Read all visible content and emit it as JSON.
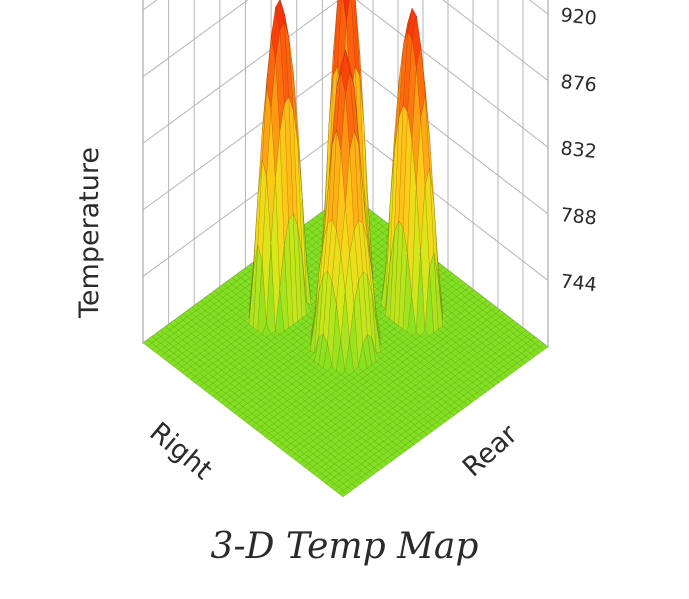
{
  "figure": {
    "caption": "3-D Temp Map"
  },
  "chart_data": {
    "type": "surface",
    "title": "",
    "zlabel": "Temperature",
    "x_axis_label": "Right",
    "y_axis_label": "Rear",
    "z_ticks": [
      744,
      788,
      832,
      876,
      920
    ],
    "zlim": [
      700,
      930
    ],
    "grid": true,
    "colormap": [
      "#7ee21e",
      "#d6e81a",
      "#ffd21a",
      "#ff9a12",
      "#ff4a0c",
      "#e81a0a"
    ],
    "peaks": [
      {
        "name": "left",
        "value": 905
      },
      {
        "name": "back",
        "value": 920
      },
      {
        "name": "right",
        "value": 900
      },
      {
        "name": "front",
        "value": 895
      }
    ],
    "base_value": 700
  }
}
